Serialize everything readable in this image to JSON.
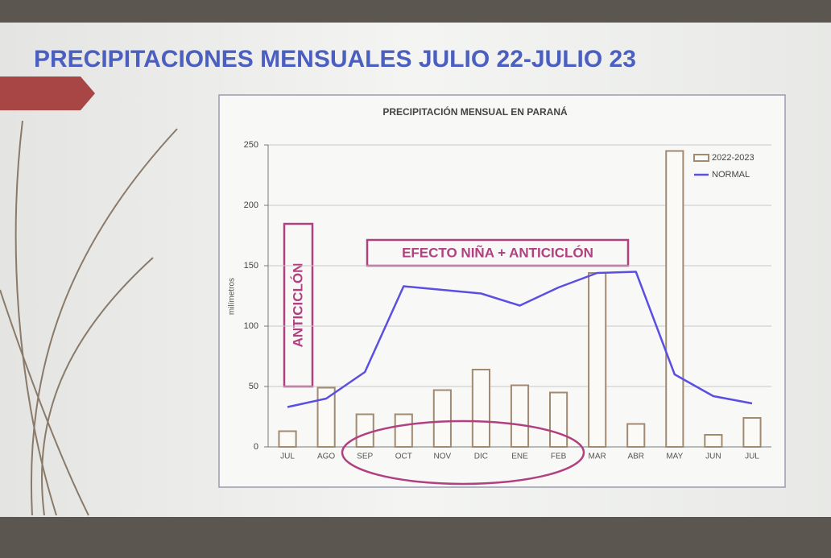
{
  "header": {
    "title": "PRECIPITACIONES MENSUALES JULIO 22-JULIO 23"
  },
  "chart_data": {
    "type": "bar",
    "title": "PRECIPITACIÓN MENSUAL EN PARANÁ",
    "y_label": "milímetros",
    "categories": [
      "JUL",
      "AGO",
      "SEP",
      "OCT",
      "NOV",
      "DIC",
      "ENE",
      "FEB",
      "MAR",
      "ABR",
      "MAY",
      "JUN",
      "JUL"
    ],
    "series": [
      {
        "name": "2022-2023",
        "type": "bar",
        "color": "#a08a70",
        "values": [
          13,
          49,
          27,
          27,
          47,
          64,
          51,
          45,
          144,
          19,
          245,
          10,
          24
        ]
      },
      {
        "name": "NORMAL",
        "type": "line",
        "color": "#5a4fe0",
        "values": [
          33,
          40,
          62,
          133,
          130,
          127,
          117,
          132,
          144,
          145,
          60,
          42,
          36
        ]
      }
    ],
    "ylim": [
      0,
      250
    ],
    "yticks": [
      0,
      50,
      100,
      150,
      200,
      250
    ],
    "grid": true,
    "legend": "upper right",
    "annotations": [
      "ANTICICLÓN",
      "EFECTO NIÑA + ANTICICLÓN"
    ]
  }
}
